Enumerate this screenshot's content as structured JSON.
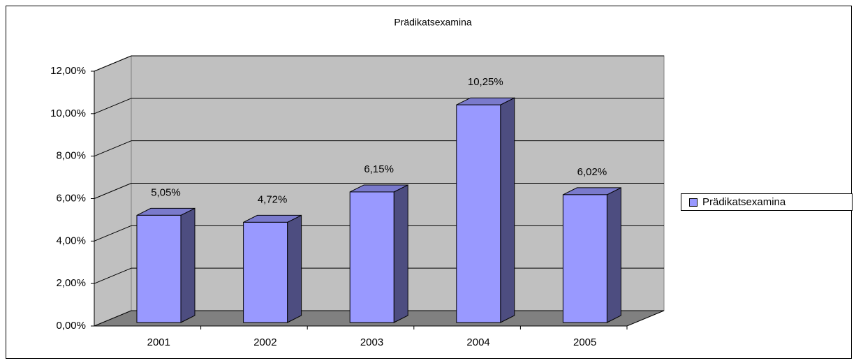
{
  "chart_data": {
    "type": "bar3d",
    "title": "Prädikatsexamina",
    "categories": [
      "2001",
      "2002",
      "2003",
      "2004",
      "2005"
    ],
    "series": [
      {
        "name": "Prädikatsexamina",
        "color": "#9999ff",
        "values": [
          5.05,
          4.72,
          6.15,
          10.25,
          6.02
        ],
        "value_labels": [
          "5,05%",
          "4,72%",
          "6,15%",
          "10,25%",
          "6,02%"
        ]
      }
    ],
    "ylim": [
      0,
      12
    ],
    "yticks": [
      {
        "value": 0,
        "label": "0,00%"
      },
      {
        "value": 2,
        "label": "2,00%"
      },
      {
        "value": 4,
        "label": "4,00%"
      },
      {
        "value": 6,
        "label": "6,00%"
      },
      {
        "value": 8,
        "label": "8,00%"
      },
      {
        "value": 10,
        "label": "10,00%"
      },
      {
        "value": 12,
        "label": "12,00%"
      }
    ],
    "grid": true,
    "legend": "right"
  }
}
